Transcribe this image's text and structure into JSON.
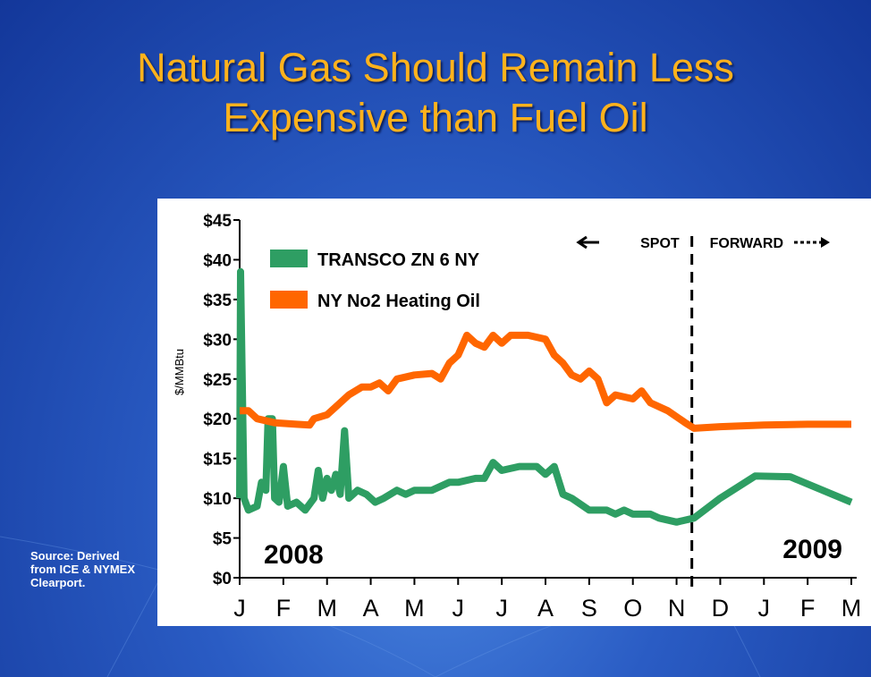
{
  "chart_data": {
    "type": "line",
    "title": "Natural Gas Should Remain Less Expensive than Fuel Oil",
    "y_label": "$/MMBtu",
    "source": "Source: Derived from ICE & NYMEX Clearport.",
    "annotations": [
      "2008",
      "2009",
      "SPOT",
      "FORWARD"
    ],
    "divider_x": 10.35,
    "xlim": [
      0,
      14
    ],
    "xticks": [
      {
        "value": 0,
        "label": "J"
      },
      {
        "value": 1,
        "label": "F"
      },
      {
        "value": 2,
        "label": "M"
      },
      {
        "value": 3,
        "label": "A"
      },
      {
        "value": 4,
        "label": "M"
      },
      {
        "value": 5,
        "label": "J"
      },
      {
        "value": 6,
        "label": "J"
      },
      {
        "value": 7,
        "label": "A"
      },
      {
        "value": 8,
        "label": "S"
      },
      {
        "value": 9,
        "label": "O"
      },
      {
        "value": 10,
        "label": "N"
      },
      {
        "value": 11,
        "label": "D"
      },
      {
        "value": 12,
        "label": "J"
      },
      {
        "value": 13,
        "label": "F"
      },
      {
        "value": 14,
        "label": "M"
      }
    ],
    "ylim": [
      0,
      45
    ],
    "yticks": [
      {
        "value": 0,
        "label": "$0"
      },
      {
        "value": 5,
        "label": "$5"
      },
      {
        "value": 10,
        "label": "$10"
      },
      {
        "value": 15,
        "label": "$15"
      },
      {
        "value": 20,
        "label": "$20"
      },
      {
        "value": 25,
        "label": "$25"
      },
      {
        "value": 30,
        "label": "$30"
      },
      {
        "value": 35,
        "label": "$35"
      },
      {
        "value": 40,
        "label": "$40"
      },
      {
        "value": 45,
        "label": "$45"
      }
    ],
    "legend": "upper left",
    "series": [
      {
        "name": "TRANSCO ZN 6 NY",
        "color": "#2e9e63",
        "x": [
          0,
          0.02,
          0.1,
          0.2,
          0.4,
          0.5,
          0.6,
          0.65,
          0.75,
          0.8,
          0.9,
          1.0,
          1.1,
          1.3,
          1.5,
          1.7,
          1.8,
          1.9,
          2.0,
          2.1,
          2.2,
          2.3,
          2.4,
          2.5,
          2.7,
          2.9,
          3.1,
          3.3,
          3.6,
          3.8,
          4.0,
          4.4,
          4.8,
          5.0,
          5.4,
          5.6,
          5.8,
          6.0,
          6.4,
          6.8,
          7.0,
          7.2,
          7.4,
          7.6,
          8.0,
          8.4,
          8.6,
          8.8,
          9.0,
          9.4,
          9.6,
          10.0,
          10.4,
          11,
          11.8,
          12.6,
          14
        ],
        "values": [
          10,
          38.5,
          10,
          8.5,
          9,
          12,
          11,
          20,
          20,
          10,
          9.5,
          14,
          9,
          9.5,
          8.5,
          10,
          13.5,
          10,
          12.5,
          11,
          13,
          10.5,
          18.5,
          10,
          11,
          10.5,
          9.5,
          10,
          11,
          10.5,
          11,
          11,
          12,
          12,
          12.5,
          12.5,
          14.5,
          13.5,
          14,
          14,
          13,
          14,
          10.5,
          10,
          8.5,
          8.5,
          8,
          8.5,
          8,
          8,
          7.5,
          7,
          7.5,
          10,
          12.8,
          12.7,
          9.5
        ]
      },
      {
        "name": "NY No2 Heating Oil",
        "color": "#ff6600",
        "x": [
          0,
          0.2,
          0.4,
          0.8,
          1.3,
          1.6,
          1.7,
          2.0,
          2.2,
          2.5,
          2.8,
          3.0,
          3.2,
          3.4,
          3.6,
          4.0,
          4.4,
          4.6,
          4.8,
          5.0,
          5.2,
          5.4,
          5.6,
          5.8,
          6.0,
          6.2,
          6.6,
          7.0,
          7.2,
          7.4,
          7.6,
          7.8,
          8.0,
          8.2,
          8.4,
          8.6,
          9.0,
          9.2,
          9.4,
          9.8,
          10.2,
          10.4,
          11,
          12,
          13,
          14
        ],
        "values": [
          21,
          21,
          20,
          19.5,
          19.3,
          19.2,
          20,
          20.5,
          21.5,
          23,
          24,
          24,
          24.5,
          23.5,
          25,
          25.5,
          25.7,
          25,
          27,
          28,
          30.5,
          29.5,
          29,
          30.5,
          29.5,
          30.5,
          30.5,
          30,
          28,
          27,
          25.5,
          25,
          26,
          25,
          22,
          23,
          22.5,
          23.5,
          22,
          21,
          19.5,
          18.8,
          19,
          19.2,
          19.3,
          19.3
        ]
      }
    ]
  }
}
